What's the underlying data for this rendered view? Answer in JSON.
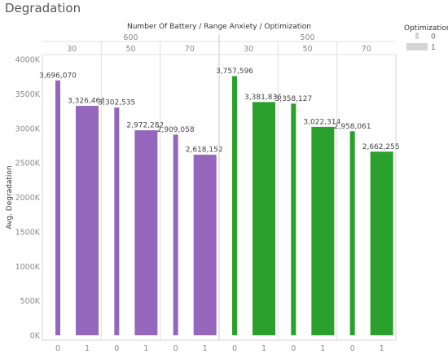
{
  "title": "Degradation",
  "chart_data": {
    "type": "bar",
    "title": "Degradation",
    "column_header": "Number Of Battery / Range Anxiety / Optimization",
    "ylabel": "Avg. Degradation",
    "ylim": [
      0,
      4000000
    ],
    "yticks": [
      0,
      500000,
      1000000,
      1500000,
      2000000,
      2500000,
      3000000,
      3500000,
      4000000
    ],
    "ytick_labels": [
      "0K",
      "500K",
      "1000K",
      "1500K",
      "2000K",
      "2500K",
      "3000K",
      "3500K",
      "4000K"
    ],
    "grid": "vertical separators",
    "size_encodes": "Optimization",
    "groups": [
      {
        "battery": "600",
        "color": "#9467bd",
        "subgroups": [
          {
            "range_anxiety": "30",
            "bars": [
              {
                "optimization": "0",
                "value": 3696070,
                "label": "3,696,070"
              },
              {
                "optimization": "1",
                "value": 3326463,
                "label": "3,326,463"
              }
            ]
          },
          {
            "range_anxiety": "50",
            "bars": [
              {
                "optimization": "0",
                "value": 3302535,
                "label": "3,302,535"
              },
              {
                "optimization": "1",
                "value": 2972282,
                "label": "2,972,282"
              }
            ]
          },
          {
            "range_anxiety": "70",
            "bars": [
              {
                "optimization": "0",
                "value": 2909058,
                "label": "2,909,058"
              },
              {
                "optimization": "1",
                "value": 2618152,
                "label": "2,618,152"
              }
            ]
          }
        ]
      },
      {
        "battery": "500",
        "color": "#2ca02c",
        "subgroups": [
          {
            "range_anxiety": "30",
            "bars": [
              {
                "optimization": "0",
                "value": 3757596,
                "label": "3,757,596"
              },
              {
                "optimization": "1",
                "value": 3381836,
                "label": "3,381,836"
              }
            ]
          },
          {
            "range_anxiety": "50",
            "bars": [
              {
                "optimization": "0",
                "value": 3358127,
                "label": "3,358,127"
              },
              {
                "optimization": "1",
                "value": 3022314,
                "label": "3,022,314"
              }
            ]
          },
          {
            "range_anxiety": "70",
            "bars": [
              {
                "optimization": "0",
                "value": 2958061,
                "label": "2,958,061"
              },
              {
                "optimization": "1",
                "value": 2662255,
                "label": "2,662,255"
              }
            ]
          }
        ]
      }
    ],
    "legend": {
      "title": "Optimization",
      "placement": "top-right",
      "items": [
        {
          "label": "0",
          "size": "thin"
        },
        {
          "label": "1",
          "size": "wide"
        }
      ]
    }
  }
}
